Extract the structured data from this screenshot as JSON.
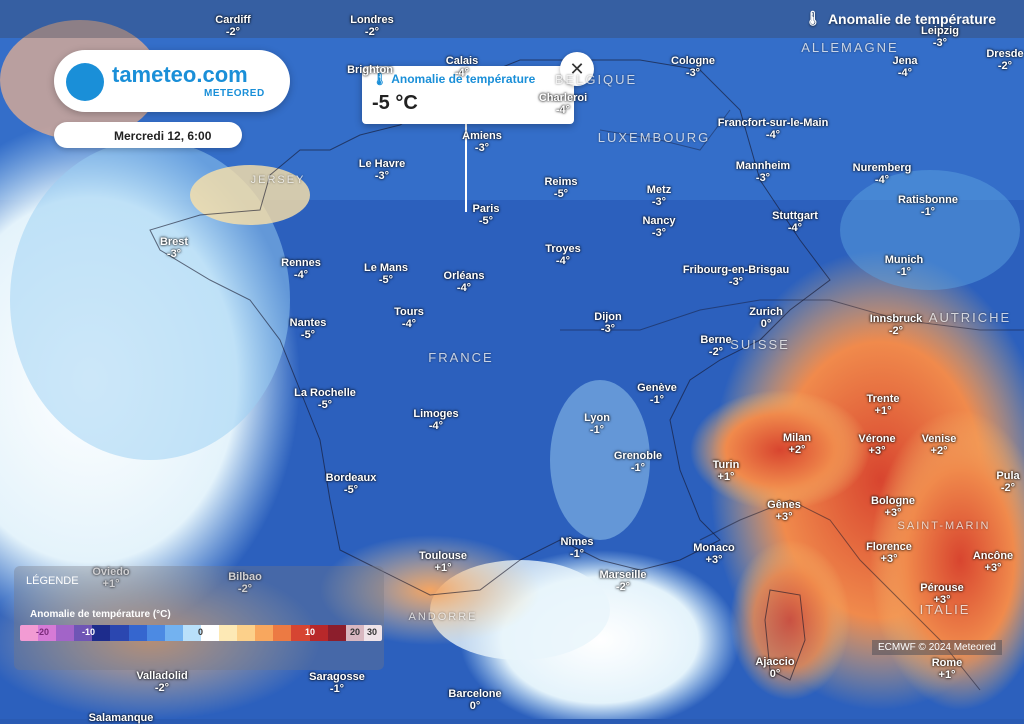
{
  "header": {
    "title": "Anomalie de température"
  },
  "brand": {
    "name": "tameteo.com",
    "sub": "METEORED"
  },
  "date": "Mercredi 12, 6:00",
  "popup": {
    "title": "Anomalie de température",
    "value": "-5 °C"
  },
  "legend": {
    "title": "LÉGENDE",
    "subtitle": "Anomalie de température (°C)",
    "labels": [
      "-20",
      "-10",
      "0",
      "10",
      "20",
      "30"
    ],
    "colors": [
      "#f29bd3",
      "#d67ad6",
      "#a264c8",
      "#6f55b5",
      "#1d2c8c",
      "#2b47b0",
      "#3566cf",
      "#4c8ae3",
      "#73b2f0",
      "#b9e0fa",
      "#ffffff",
      "#fde9b5",
      "#fcd08a",
      "#f8a75e",
      "#ec7a43",
      "#d64532",
      "#b8282a",
      "#8c1e2c",
      "#d8b7c0",
      "#efe3e8"
    ]
  },
  "credit": "ECMWF © 2024 Meteored",
  "countries": [
    {
      "name": "ALLEMAGNE"
    },
    {
      "name": "BELGIQUE"
    },
    {
      "name": "LUXEMBOURG"
    },
    {
      "name": "FRANCE"
    },
    {
      "name": "SUISSE"
    },
    {
      "name": "AUTRICHE"
    },
    {
      "name": "ITALIE"
    },
    {
      "name": "SAINT-MARIN"
    },
    {
      "name": "ANDORRE"
    },
    {
      "name": "JERSEY"
    }
  ],
  "cities": [
    {
      "name": "Cardiff",
      "value": "-2°"
    },
    {
      "name": "Londres",
      "value": "-2°"
    },
    {
      "name": "Leipzig",
      "value": "-3°"
    },
    {
      "name": "Dresde",
      "value": "-2°"
    },
    {
      "name": "Calais",
      "value": "-4°"
    },
    {
      "name": "Brighton",
      "value": ""
    },
    {
      "name": "Cologne",
      "value": "-3°"
    },
    {
      "name": "Jena",
      "value": "-4°"
    },
    {
      "name": "Charleroi",
      "value": "-4°"
    },
    {
      "name": "Amiens",
      "value": "-3°"
    },
    {
      "name": "Francfort-sur-le-Main",
      "value": "-4°"
    },
    {
      "name": "Le Havre",
      "value": "-3°"
    },
    {
      "name": "Mannheim",
      "value": "-3°"
    },
    {
      "name": "Nuremberg",
      "value": "-4°"
    },
    {
      "name": "Reims",
      "value": "-5°"
    },
    {
      "name": "Metz",
      "value": "-3°"
    },
    {
      "name": "Ratisbonne",
      "value": "-1°"
    },
    {
      "name": "Paris",
      "value": "-5°"
    },
    {
      "name": "Stuttgart",
      "value": "-4°"
    },
    {
      "name": "Nancy",
      "value": "-3°"
    },
    {
      "name": "Brest",
      "value": "-3°"
    },
    {
      "name": "Troyes",
      "value": "-4°"
    },
    {
      "name": "Rennes",
      "value": "-4°"
    },
    {
      "name": "Le Mans",
      "value": "-5°"
    },
    {
      "name": "Orléans",
      "value": "-4°"
    },
    {
      "name": "Munich",
      "value": "-1°"
    },
    {
      "name": "Fribourg-en-Brisgau",
      "value": "-3°"
    },
    {
      "name": "Zurich",
      "value": "0°"
    },
    {
      "name": "Tours",
      "value": "-4°"
    },
    {
      "name": "Dijon",
      "value": "-3°"
    },
    {
      "name": "Nantes",
      "value": "-5°"
    },
    {
      "name": "Innsbruck",
      "value": "-2°"
    },
    {
      "name": "Berne",
      "value": "-2°"
    },
    {
      "name": "Genève",
      "value": "-1°"
    },
    {
      "name": "La Rochelle",
      "value": "-5°"
    },
    {
      "name": "Trente",
      "value": "+1°"
    },
    {
      "name": "Limoges",
      "value": "-4°"
    },
    {
      "name": "Lyon",
      "value": "-1°"
    },
    {
      "name": "Milan",
      "value": "+2°"
    },
    {
      "name": "Vérone",
      "value": "+3°"
    },
    {
      "name": "Venise",
      "value": "+2°"
    },
    {
      "name": "Grenoble",
      "value": "-1°"
    },
    {
      "name": "Turin",
      "value": "+1°"
    },
    {
      "name": "Bordeaux",
      "value": "-5°"
    },
    {
      "name": "Pula",
      "value": "-2°"
    },
    {
      "name": "Gênes",
      "value": "+3°"
    },
    {
      "name": "Bologne",
      "value": "+3°"
    },
    {
      "name": "Nîmes",
      "value": "-1°"
    },
    {
      "name": "Monaco",
      "value": "+3°"
    },
    {
      "name": "Florence",
      "value": "+3°"
    },
    {
      "name": "Ancône",
      "value": "+3°"
    },
    {
      "name": "Toulouse",
      "value": "+1°"
    },
    {
      "name": "Marseille",
      "value": "-2°"
    },
    {
      "name": "Oviedo",
      "value": "+1°"
    },
    {
      "name": "Bilbao",
      "value": "-2°"
    },
    {
      "name": "Pérouse",
      "value": "+3°"
    },
    {
      "name": "Rome",
      "value": "+1°"
    },
    {
      "name": "Ajaccio",
      "value": "0°"
    },
    {
      "name": "Valladolid",
      "value": "-2°"
    },
    {
      "name": "Saragosse",
      "value": "-1°"
    },
    {
      "name": "Barcelone",
      "value": "0°"
    },
    {
      "name": "Salamanque",
      "value": ""
    }
  ]
}
